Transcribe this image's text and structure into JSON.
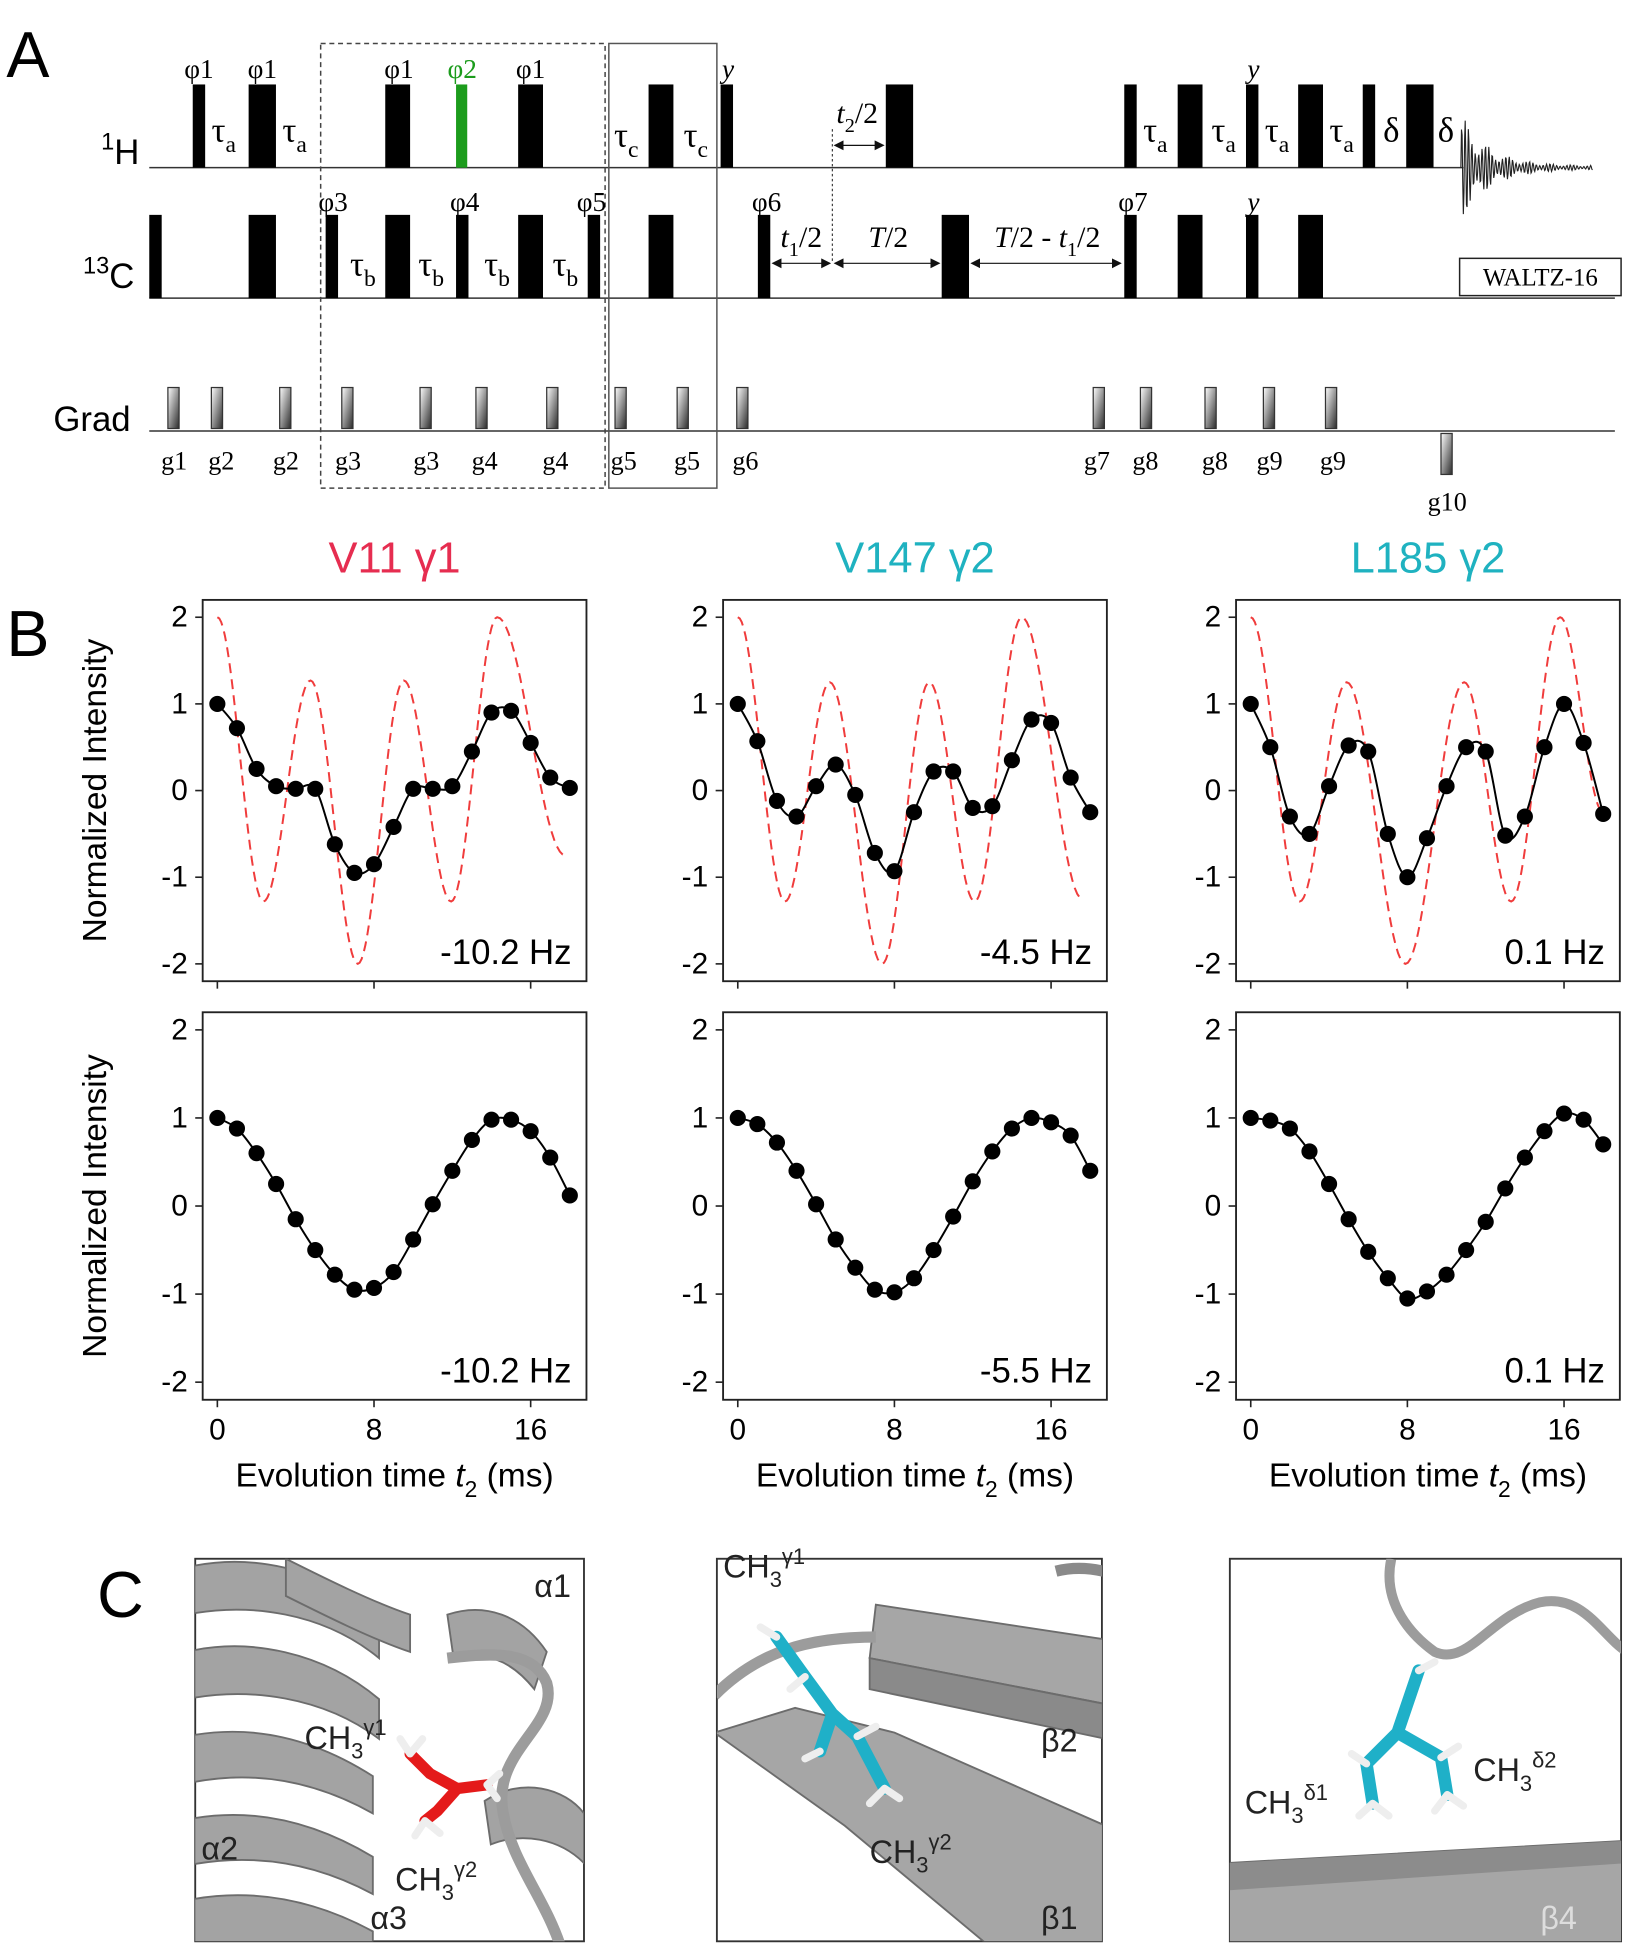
{
  "panel_labels": [
    "A",
    "B",
    "C"
  ],
  "pulse_sequence": {
    "channels": [
      [
        {
          "text": "1",
          "style": "sup"
        },
        {
          "text": "H"
        }
      ],
      [
        {
          "text": "13",
          "style": "sup"
        },
        {
          "text": "C"
        }
      ],
      "Grad"
    ],
    "phases": [
      [
        {
          "text": "φ1"
        }
      ],
      [
        {
          "text": "φ1"
        }
      ],
      [
        {
          "text": "φ1"
        }
      ],
      [
        {
          "text": "φ2",
          "color": "#1c9c1c"
        }
      ],
      [
        {
          "text": "φ1"
        }
      ],
      [
        {
          "text": "y",
          "style": "italic"
        }
      ],
      [
        {
          "text": "y",
          "style": "italic"
        }
      ],
      [
        {
          "text": "φ3"
        }
      ],
      [
        {
          "text": "φ4"
        }
      ],
      [
        {
          "text": "φ5"
        }
      ],
      [
        {
          "text": "φ6"
        }
      ],
      [
        {
          "text": "φ7"
        }
      ],
      [
        {
          "text": "y",
          "style": "italic"
        }
      ]
    ],
    "delays": [
      [
        {
          "text": "τ"
        },
        {
          "text": "a",
          "style": "sub"
        }
      ],
      [
        {
          "text": "τ"
        },
        {
          "text": "a",
          "style": "sub"
        }
      ],
      [
        {
          "text": "τ"
        },
        {
          "text": "c",
          "style": "sub"
        }
      ],
      [
        {
          "text": "τ"
        },
        {
          "text": "c",
          "style": "sub"
        }
      ],
      [
        {
          "text": "τ"
        },
        {
          "text": "a",
          "style": "sub"
        }
      ],
      [
        {
          "text": "τ"
        },
        {
          "text": "a",
          "style": "sub"
        }
      ],
      [
        {
          "text": "τ"
        },
        {
          "text": "a",
          "style": "sub"
        }
      ],
      [
        {
          "text": "τ"
        },
        {
          "text": "a",
          "style": "sub"
        }
      ],
      "δ",
      "δ",
      [
        {
          "text": "τ"
        },
        {
          "text": "b",
          "style": "sub"
        }
      ],
      [
        {
          "text": "τ"
        },
        {
          "text": "b",
          "style": "sub"
        }
      ],
      [
        {
          "text": "τ"
        },
        {
          "text": "b",
          "style": "sub"
        }
      ],
      [
        {
          "text": "τ"
        },
        {
          "text": "b",
          "style": "sub"
        }
      ]
    ],
    "timings": [
      [
        {
          "text": "t",
          "style": "italic"
        },
        {
          "text": "2",
          "style": "sub"
        },
        {
          "text": "/2"
        }
      ],
      [
        {
          "text": "t",
          "style": "italic"
        },
        {
          "text": "1",
          "style": "sub"
        },
        {
          "text": "/2"
        }
      ],
      [
        {
          "text": "T",
          "style": "italic"
        },
        {
          "text": "/2"
        }
      ],
      [
        {
          "text": "T",
          "style": "italic"
        },
        {
          "text": "/2 - "
        },
        {
          "text": "t",
          "style": "italic"
        },
        {
          "text": "1",
          "style": "sub"
        },
        {
          "text": "/2"
        }
      ]
    ],
    "gradients": [
      "g1",
      "g2",
      "g2",
      "g3",
      "g3",
      "g4",
      "g4",
      "g5",
      "g5",
      "g6",
      "g7",
      "g8",
      "g8",
      "g9",
      "g9",
      "g10"
    ],
    "decoupling": "WALTZ-16"
  },
  "chart_data": [
    {
      "type": "line",
      "title": "V11 γ1",
      "title_color": "#e62d50",
      "ylabel": "Normalized Intensity",
      "annotation": "-10.2 Hz",
      "xlim": [
        -0.75,
        18.85
      ],
      "ylim": [
        -2.2,
        2.2
      ],
      "xticks": [
        0,
        8,
        16
      ],
      "yticks": [
        -2,
        -1,
        0,
        1,
        2
      ],
      "xtick_labels": false,
      "series": [
        {
          "color": "#f03c3c",
          "style": "dashed",
          "x": [
            0,
            2.35,
            4.76,
            7.17,
            9.52,
            11.94,
            14.29,
            17.78
          ],
          "values": [
            2,
            -1.28,
            1.27,
            -2,
            1.27,
            -1.28,
            2,
            -0.75
          ]
        },
        {
          "color": "#000000",
          "style": "solid",
          "marker": "circle",
          "x": [
            0,
            1,
            2,
            3,
            4,
            5,
            6,
            7,
            8,
            9,
            10,
            11,
            12,
            13,
            14,
            15,
            16,
            17,
            18
          ],
          "values": [
            1.0,
            0.72,
            0.25,
            0.05,
            0.02,
            0.02,
            -0.62,
            -0.95,
            -0.85,
            -0.42,
            0.02,
            0.02,
            0.05,
            0.45,
            0.9,
            0.92,
            0.55,
            0.15,
            0.03
          ]
        }
      ]
    },
    {
      "type": "line",
      "title": "V147 γ2",
      "title_color": "#1fb2c0",
      "annotation": "-4.5 Hz",
      "xlim": [
        -0.75,
        18.85
      ],
      "ylim": [
        -2.2,
        2.2
      ],
      "xticks": [
        0,
        8,
        16
      ],
      "yticks": [
        -2,
        -1,
        0,
        1,
        2
      ],
      "xtick_labels": false,
      "series": [
        {
          "color": "#f03c3c",
          "style": "dashed",
          "x": [
            0,
            2.41,
            4.7,
            7.37,
            9.78,
            12.1,
            14.5,
            17.6
          ],
          "values": [
            2,
            -1.28,
            1.25,
            -2,
            1.25,
            -1.28,
            2,
            -1.25
          ]
        },
        {
          "color": "#000000",
          "style": "solid",
          "marker": "circle",
          "x": [
            0,
            1,
            2,
            3,
            4,
            5,
            6,
            7,
            8,
            9,
            10,
            11,
            12,
            13,
            14,
            15,
            16,
            17,
            18
          ],
          "values": [
            1.0,
            0.57,
            -0.12,
            -0.3,
            0.05,
            0.3,
            -0.05,
            -0.72,
            -0.93,
            -0.25,
            0.22,
            0.22,
            -0.2,
            -0.18,
            0.35,
            0.82,
            0.78,
            0.15,
            -0.25
          ]
        }
      ]
    },
    {
      "type": "line",
      "title": "L185 γ2",
      "title_color": "#1fb2c0",
      "annotation": "0.1 Hz",
      "xlim": [
        -0.75,
        18.85
      ],
      "ylim": [
        -2.2,
        2.2
      ],
      "xticks": [
        0,
        8,
        16
      ],
      "yticks": [
        -2,
        -1,
        0,
        1,
        2
      ],
      "xtick_labels": false,
      "series": [
        {
          "color": "#f03c3c",
          "style": "dashed",
          "x": [
            0,
            2.5,
            4.9,
            7.9,
            10.9,
            13.3,
            15.8,
            18
          ],
          "values": [
            2,
            -1.28,
            1.25,
            -2,
            1.25,
            -1.28,
            2,
            -0.25
          ]
        },
        {
          "color": "#000000",
          "style": "solid",
          "marker": "circle",
          "x": [
            0,
            1,
            2,
            3,
            4,
            5,
            6,
            7,
            8,
            9,
            10,
            11,
            12,
            13,
            14,
            15,
            16,
            17,
            18
          ],
          "values": [
            1.0,
            0.5,
            -0.3,
            -0.5,
            0.05,
            0.52,
            0.45,
            -0.5,
            -1.0,
            -0.55,
            0.05,
            0.5,
            0.45,
            -0.52,
            -0.3,
            0.5,
            1.0,
            0.55,
            -0.27
          ]
        }
      ]
    },
    {
      "type": "line",
      "ylabel": "Normalized Intensity",
      "annotation": "-10.2 Hz",
      "xlabel": [
        {
          "text": "Evolution time "
        },
        {
          "text": "t",
          "style": "italic"
        },
        {
          "text": "2",
          "style": "sub"
        },
        {
          "text": " (ms)"
        }
      ],
      "xlim": [
        -0.75,
        18.85
      ],
      "ylim": [
        -2.2,
        2.2
      ],
      "xticks": [
        0,
        8,
        16
      ],
      "yticks": [
        -2,
        -1,
        0,
        1,
        2
      ],
      "xtick_labels": true,
      "series": [
        {
          "color": "#000000",
          "style": "solid",
          "marker": "circle",
          "x": [
            0,
            1,
            2,
            3,
            4,
            5,
            6,
            7,
            8,
            9,
            10,
            11,
            12,
            13,
            14,
            15,
            16,
            17,
            18
          ],
          "values": [
            1.0,
            0.88,
            0.6,
            0.25,
            -0.15,
            -0.5,
            -0.78,
            -0.95,
            -0.93,
            -0.75,
            -0.38,
            0.02,
            0.4,
            0.75,
            0.98,
            0.98,
            0.85,
            0.55,
            0.12
          ]
        }
      ]
    },
    {
      "type": "line",
      "annotation": "-5.5 Hz",
      "xlabel": [
        {
          "text": "Evolution time "
        },
        {
          "text": "t",
          "style": "italic"
        },
        {
          "text": "2",
          "style": "sub"
        },
        {
          "text": " (ms)"
        }
      ],
      "xlim": [
        -0.75,
        18.85
      ],
      "ylim": [
        -2.2,
        2.2
      ],
      "xticks": [
        0,
        8,
        16
      ],
      "yticks": [
        -2,
        -1,
        0,
        1,
        2
      ],
      "xtick_labels": true,
      "series": [
        {
          "color": "#000000",
          "style": "solid",
          "marker": "circle",
          "x": [
            0,
            1,
            2,
            3,
            4,
            5,
            6,
            7,
            8,
            9,
            10,
            11,
            12,
            13,
            14,
            15,
            16,
            17,
            18
          ],
          "values": [
            1.0,
            0.93,
            0.72,
            0.4,
            0.02,
            -0.38,
            -0.7,
            -0.95,
            -0.98,
            -0.82,
            -0.5,
            -0.12,
            0.28,
            0.62,
            0.88,
            1.0,
            0.95,
            0.8,
            0.4
          ]
        }
      ]
    },
    {
      "type": "line",
      "annotation": "0.1 Hz",
      "xlabel": [
        {
          "text": "Evolution time "
        },
        {
          "text": "t",
          "style": "italic"
        },
        {
          "text": "2",
          "style": "sub"
        },
        {
          "text": " (ms)"
        }
      ],
      "xlim": [
        -0.75,
        18.85
      ],
      "ylim": [
        -2.2,
        2.2
      ],
      "xticks": [
        0,
        8,
        16
      ],
      "yticks": [
        -2,
        -1,
        0,
        1,
        2
      ],
      "xtick_labels": true,
      "series": [
        {
          "color": "#000000",
          "style": "solid",
          "marker": "circle",
          "x": [
            0,
            1,
            2,
            3,
            4,
            5,
            6,
            7,
            8,
            9,
            10,
            11,
            12,
            13,
            14,
            15,
            16,
            17,
            18
          ],
          "values": [
            1.0,
            0.97,
            0.88,
            0.62,
            0.25,
            -0.15,
            -0.52,
            -0.82,
            -1.05,
            -0.97,
            -0.78,
            -0.5,
            -0.18,
            0.2,
            0.55,
            0.85,
            1.05,
            0.98,
            0.7
          ]
        }
      ]
    }
  ],
  "structures": [
    {
      "labels": [
        "α1",
        [
          {
            "text": "CH"
          },
          {
            "text": "3",
            "style": "sub"
          },
          {
            "text": "γ1",
            "style": "sup"
          }
        ],
        "α2",
        [
          {
            "text": "CH"
          },
          {
            "text": "3",
            "style": "sub"
          },
          {
            "text": "γ2",
            "style": "sup"
          }
        ],
        "α3"
      ]
    },
    {
      "labels": [
        [
          {
            "text": "CH"
          },
          {
            "text": "3",
            "style": "sub"
          },
          {
            "text": "γ1",
            "style": "sup"
          }
        ],
        "β2",
        [
          {
            "text": "CH"
          },
          {
            "text": "3",
            "style": "sub"
          },
          {
            "text": "γ2",
            "style": "sup"
          }
        ],
        "β1"
      ]
    },
    {
      "labels": [
        [
          {
            "text": "CH"
          },
          {
            "text": "3",
            "style": "sub"
          },
          {
            "text": "δ1",
            "style": "sup"
          }
        ],
        [
          {
            "text": "CH"
          },
          {
            "text": "3",
            "style": "sub"
          },
          {
            "text": "δ2",
            "style": "sup"
          }
        ],
        "β4"
      ]
    }
  ]
}
